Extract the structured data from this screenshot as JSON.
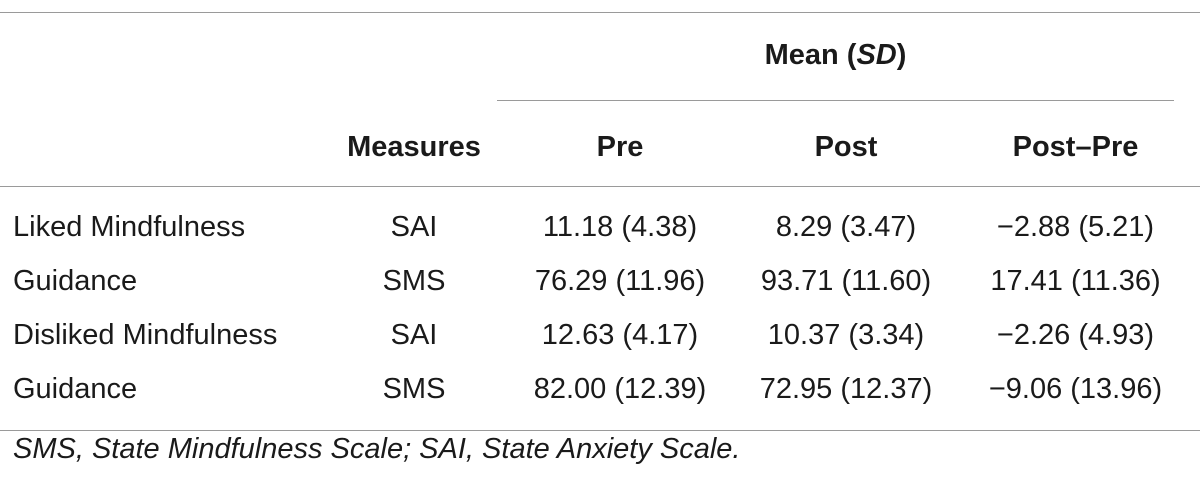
{
  "table": {
    "group_header": {
      "mean_label": "Mean (",
      "sd_label": "SD",
      "close": ")"
    },
    "columns": {
      "measures": "Measures",
      "pre": "Pre",
      "post": "Post",
      "diff": "Post–Pre"
    },
    "rows": [
      {
        "label": "Liked Mindfulness",
        "measure": "SAI",
        "pre": "11.18 (4.38)",
        "post": "8.29 (3.47)",
        "diff": "−2.88 (5.21)"
      },
      {
        "label": "Guidance",
        "measure": "SMS",
        "pre": "76.29 (11.96)",
        "post": "93.71 (11.60)",
        "diff": "17.41 (11.36)"
      },
      {
        "label": "Disliked Mindfulness",
        "measure": "SAI",
        "pre": "12.63 (4.17)",
        "post": "10.37 (3.34)",
        "diff": "−2.26 (4.93)"
      },
      {
        "label": "Guidance",
        "measure": "SMS",
        "pre": "82.00 (12.39)",
        "post": "72.95 (12.37)",
        "diff": "−9.06 (13.96)"
      }
    ],
    "footnote": "SMS, State Mindfulness Scale; SAI, State Anxiety Scale."
  }
}
